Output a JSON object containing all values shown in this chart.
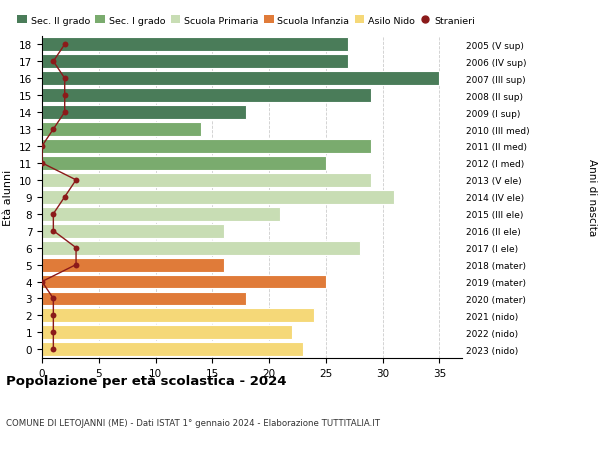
{
  "ages": [
    18,
    17,
    16,
    15,
    14,
    13,
    12,
    11,
    10,
    9,
    8,
    7,
    6,
    5,
    4,
    3,
    2,
    1,
    0
  ],
  "right_labels": [
    "2005 (V sup)",
    "2006 (IV sup)",
    "2007 (III sup)",
    "2008 (II sup)",
    "2009 (I sup)",
    "2010 (III med)",
    "2011 (II med)",
    "2012 (I med)",
    "2013 (V ele)",
    "2014 (IV ele)",
    "2015 (III ele)",
    "2016 (II ele)",
    "2017 (I ele)",
    "2018 (mater)",
    "2019 (mater)",
    "2020 (mater)",
    "2021 (nido)",
    "2022 (nido)",
    "2023 (nido)"
  ],
  "bar_values": [
    27,
    27,
    35,
    29,
    18,
    14,
    29,
    25,
    29,
    31,
    21,
    16,
    28,
    16,
    25,
    18,
    24,
    22,
    23
  ],
  "bar_colors": [
    "#4a7c59",
    "#4a7c59",
    "#4a7c59",
    "#4a7c59",
    "#4a7c59",
    "#7aab6e",
    "#7aab6e",
    "#7aab6e",
    "#c8ddb4",
    "#c8ddb4",
    "#c8ddb4",
    "#c8ddb4",
    "#c8ddb4",
    "#e07b39",
    "#e07b39",
    "#e07b39",
    "#f5d878",
    "#f5d878",
    "#f5d878"
  ],
  "stranieri_values": [
    2,
    1,
    2,
    2,
    2,
    1,
    0,
    0,
    3,
    2,
    1,
    1,
    3,
    3,
    0,
    1,
    1,
    1,
    1
  ],
  "legend_labels": [
    "Sec. II grado",
    "Sec. I grado",
    "Scuola Primaria",
    "Scuola Infanzia",
    "Asilo Nido",
    "Stranieri"
  ],
  "legend_colors": [
    "#4a7c59",
    "#7aab6e",
    "#c8ddb4",
    "#e07b39",
    "#f5d878",
    "#aa2222"
  ],
  "title": "Popolazione per età scolastica - 2024",
  "subtitle": "COMUNE DI LETOJANNI (ME) - Dati ISTAT 1° gennaio 2024 - Elaborazione TUTTITALIA.IT",
  "ylabel": "Età alunni",
  "right_ylabel": "Anni di nascita",
  "xlim": [
    0,
    37
  ],
  "xticks": [
    0,
    5,
    10,
    15,
    20,
    25,
    30,
    35
  ],
  "background_color": "#ffffff",
  "grid_color": "#cccccc",
  "stranieri_color": "#8b1a1a",
  "bar_height": 0.82
}
